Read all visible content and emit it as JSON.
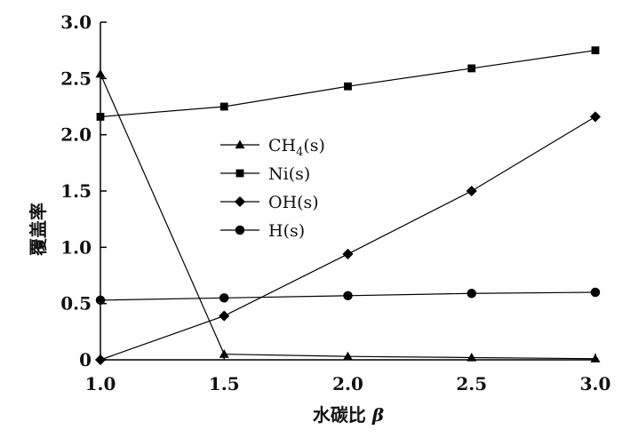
{
  "chart_data": {
    "type": "line",
    "xlabel": "水碳比",
    "xlabel_symbol": "β",
    "ylabel": "覆盖率",
    "xlim": [
      1.0,
      3.0
    ],
    "ylim": [
      0,
      3.0
    ],
    "x_ticks": [
      "1.0",
      "1.5",
      "2.0",
      "2.5",
      "3.0"
    ],
    "y_ticks": [
      "0",
      "0.5",
      "1.0",
      "1.5",
      "2.0",
      "2.5",
      "3.0"
    ],
    "grid": false,
    "legend_position": "center-left",
    "x": [
      1.0,
      1.5,
      2.0,
      2.5,
      3.0
    ],
    "series": [
      {
        "name": "CH4(s)",
        "name_main": "CH",
        "name_sub": "4",
        "name_tail": "(s)",
        "marker": "triangle",
        "values": [
          2.54,
          0.05,
          0.03,
          0.02,
          0.01
        ]
      },
      {
        "name": "Ni(s)",
        "name_main": "Ni(s)",
        "name_sub": "",
        "name_tail": "",
        "marker": "square",
        "values": [
          2.16,
          2.25,
          2.43,
          2.59,
          2.75
        ]
      },
      {
        "name": "OH(s)",
        "name_main": "OH(s)",
        "name_sub": "",
        "name_tail": "",
        "marker": "diamond",
        "values": [
          0.0,
          0.39,
          0.94,
          1.5,
          2.16
        ]
      },
      {
        "name": "H(s)",
        "name_main": "H(s)",
        "name_sub": "",
        "name_tail": "",
        "marker": "circle",
        "values": [
          0.53,
          0.55,
          0.57,
          0.59,
          0.6
        ]
      }
    ],
    "colors": {
      "line": "#000000",
      "marker": "#000000"
    }
  }
}
